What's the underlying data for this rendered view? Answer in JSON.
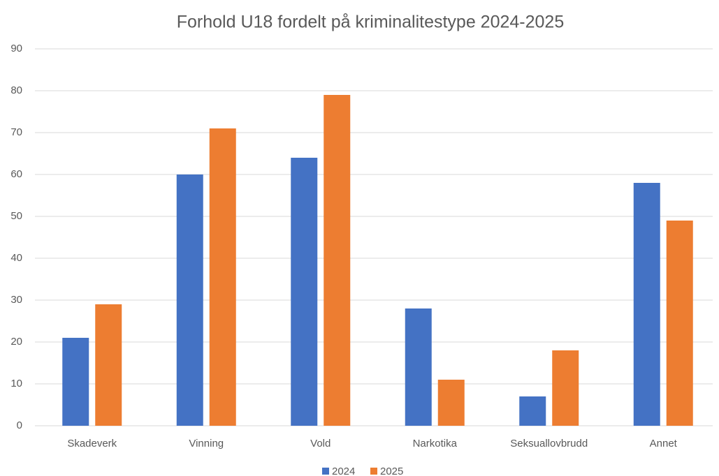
{
  "chart_data": {
    "type": "bar",
    "title": "Forhold U18 fordelt på kriminalitestype 2024-2025",
    "categories": [
      "Skadeverk",
      "Vinning",
      "Vold",
      "Narkotika",
      "Seksuallovbrudd",
      "Annet"
    ],
    "series": [
      {
        "name": "2024",
        "color": "#4472c4",
        "values": [
          21,
          60,
          64,
          28,
          7,
          58
        ]
      },
      {
        "name": "2025",
        "color": "#ed7d31",
        "values": [
          29,
          71,
          79,
          11,
          18,
          49
        ]
      }
    ],
    "ylim": [
      0,
      90
    ],
    "yticks": [
      0,
      10,
      20,
      30,
      40,
      50,
      60,
      70,
      80,
      90
    ],
    "grid": true,
    "legend": "bottom"
  }
}
